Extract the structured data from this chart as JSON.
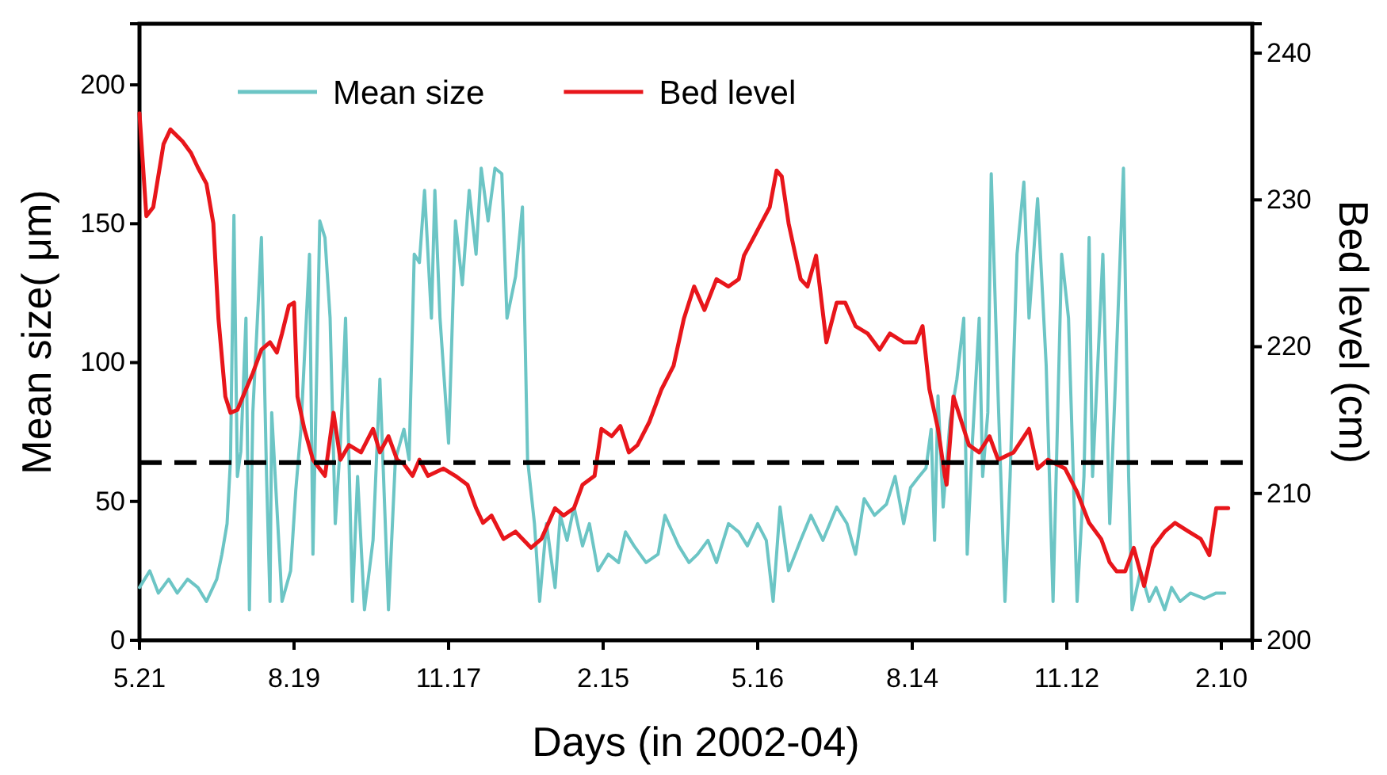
{
  "chart_data": {
    "type": "line",
    "xlabel": "Days (in 2002-04)",
    "ylabel": "Mean size( μm)",
    "y2label": "Bed level (cm)",
    "xlim": [
      "2002-05-21",
      "2004-02-28"
    ],
    "xticks": [
      {
        "value": "2002-05-21",
        "label": "5.21"
      },
      {
        "value": "2002-08-19",
        "label": "8.19"
      },
      {
        "value": "2002-11-17",
        "label": "11.17"
      },
      {
        "value": "2003-02-15",
        "label": "2.15"
      },
      {
        "value": "2003-05-16",
        "label": "5.16"
      },
      {
        "value": "2003-08-14",
        "label": "8.14"
      },
      {
        "value": "2003-11-12",
        "label": "11.12"
      },
      {
        "value": "2004-02-10",
        "label": "2.10"
      }
    ],
    "ylim": [
      0,
      222
    ],
    "yticks": [
      0,
      50,
      100,
      150,
      200
    ],
    "y2lim": [
      200,
      242
    ],
    "y2ticks": [
      200,
      210,
      220,
      230,
      240
    ],
    "grid": false,
    "legend": "top",
    "marker": "none",
    "ref_lines": [
      {
        "axis": "y",
        "value": 64,
        "color": "#000000",
        "line_style": "dashed"
      }
    ],
    "series": [
      {
        "name": "Mean size",
        "color": "#6cc5c5",
        "x": [
          "2002-05-21",
          "2002-05-27",
          "2002-06-01",
          "2002-06-07",
          "2002-06-12",
          "2002-06-18",
          "2002-06-24",
          "2002-06-29",
          "2002-07-05",
          "2002-07-08",
          "2002-07-11",
          "2002-07-13",
          "2002-07-15",
          "2002-07-17",
          "2002-07-19",
          "2002-07-22",
          "2002-07-24",
          "2002-07-26",
          "2002-07-31",
          "2002-08-03",
          "2002-08-05",
          "2002-08-06",
          "2002-08-12",
          "2002-08-17",
          "2002-08-20",
          "2002-08-23",
          "2002-08-28",
          "2002-08-30",
          "2002-09-03",
          "2002-09-06",
          "2002-09-09",
          "2002-09-12",
          "2002-09-15",
          "2002-09-18",
          "2002-09-22",
          "2002-09-25",
          "2002-09-29",
          "2002-10-04",
          "2002-10-08",
          "2002-10-13",
          "2002-10-17",
          "2002-10-22",
          "2002-10-25",
          "2002-10-28",
          "2002-10-31",
          "2002-11-03",
          "2002-11-07",
          "2002-11-09",
          "2002-11-12",
          "2002-11-17",
          "2002-11-21",
          "2002-11-25",
          "2002-11-29",
          "2002-12-03",
          "2002-12-06",
          "2002-12-10",
          "2002-12-14",
          "2002-12-18",
          "2002-12-21",
          "2002-12-26",
          "2002-12-30",
          "2003-01-02",
          "2003-01-06",
          "2003-01-09",
          "2003-01-13",
          "2003-01-18",
          "2003-01-21",
          "2003-01-25",
          "2003-01-29",
          "2003-02-03",
          "2003-02-07",
          "2003-02-12",
          "2003-02-18",
          "2003-02-24",
          "2003-02-28",
          "2003-03-05",
          "2003-03-12",
          "2003-03-19",
          "2003-03-23",
          "2003-03-31",
          "2003-04-06",
          "2003-04-11",
          "2003-04-17",
          "2003-04-22",
          "2003-04-29",
          "2003-05-05",
          "2003-05-10",
          "2003-05-16",
          "2003-05-21",
          "2003-05-25",
          "2003-05-29",
          "2003-06-03",
          "2003-06-10",
          "2003-06-16",
          "2003-06-23",
          "2003-07-01",
          "2003-07-07",
          "2003-07-12",
          "2003-07-17",
          "2003-07-23",
          "2003-07-30",
          "2003-08-04",
          "2003-08-09",
          "2003-08-13",
          "2003-08-18",
          "2003-08-22",
          "2003-08-25",
          "2003-08-27",
          "2003-08-29",
          "2003-09-01",
          "2003-09-05",
          "2003-09-09",
          "2003-09-13",
          "2003-09-15",
          "2003-09-18",
          "2003-09-22",
          "2003-09-24",
          "2003-09-27",
          "2003-09-29",
          "2003-10-03",
          "2003-10-07",
          "2003-10-10",
          "2003-10-14",
          "2003-10-18",
          "2003-10-21",
          "2003-10-26",
          "2003-10-31",
          "2003-11-04",
          "2003-11-09",
          "2003-11-13",
          "2003-11-18",
          "2003-11-22",
          "2003-11-25",
          "2003-11-27",
          "2003-11-30",
          "2003-12-03",
          "2003-12-07",
          "2003-12-10",
          "2003-12-15",
          "2003-12-18",
          "2003-12-20",
          "2003-12-25",
          "2003-12-30",
          "2004-01-03",
          "2004-01-08",
          "2004-01-12",
          "2004-01-17",
          "2004-01-23",
          "2004-01-31",
          "2004-02-07",
          "2004-02-12"
        ],
        "values": [
          19,
          25,
          17,
          22,
          17,
          22,
          19,
          14,
          22,
          31,
          42,
          65,
          153,
          59,
          68,
          116,
          11,
          82,
          145,
          59,
          14,
          82,
          14,
          25,
          54,
          76,
          139,
          31,
          151,
          145,
          116,
          42,
          71,
          116,
          14,
          59,
          11,
          36,
          94,
          11,
          65,
          76,
          65,
          139,
          136,
          162,
          116,
          162,
          116,
          71,
          151,
          128,
          162,
          139,
          170,
          151,
          170,
          168,
          116,
          131,
          156,
          65,
          42,
          14,
          42,
          19,
          45,
          36,
          48,
          34,
          42,
          25,
          31,
          28,
          39,
          34,
          28,
          31,
          45,
          34,
          28,
          31,
          36,
          28,
          42,
          39,
          34,
          42,
          36,
          14,
          48,
          25,
          36,
          45,
          36,
          48,
          42,
          31,
          51,
          45,
          49,
          59,
          42,
          55,
          59,
          62,
          76,
          36,
          88,
          48,
          79,
          94,
          116,
          31,
          71,
          116,
          59,
          82,
          168,
          88,
          14,
          59,
          139,
          165,
          116,
          159,
          99,
          14,
          139,
          116,
          14,
          59,
          145,
          59,
          99,
          139,
          42,
          88,
          170,
          59,
          11,
          25,
          14,
          19,
          11,
          19,
          14,
          17,
          15,
          17,
          17
        ]
      },
      {
        "name": "Bed level",
        "color": "#e8161b",
        "axis": "y2",
        "x": [
          "2002-05-21",
          "2002-05-25",
          "2002-05-29",
          "2002-06-04",
          "2002-06-08",
          "2002-06-15",
          "2002-06-20",
          "2002-06-24",
          "2002-06-29",
          "2002-07-03",
          "2002-07-06",
          "2002-07-10",
          "2002-07-13",
          "2002-07-17",
          "2002-07-22",
          "2002-07-26",
          "2002-07-31",
          "2002-08-05",
          "2002-08-09",
          "2002-08-12",
          "2002-08-16",
          "2002-08-19",
          "2002-08-21",
          "2002-08-25",
          "2002-08-30",
          "2002-09-06",
          "2002-09-11",
          "2002-09-15",
          "2002-09-20",
          "2002-09-27",
          "2002-10-04",
          "2002-10-08",
          "2002-10-13",
          "2002-10-18",
          "2002-10-22",
          "2002-10-27",
          "2002-10-31",
          "2002-11-05",
          "2002-11-14",
          "2002-11-21",
          "2002-11-28",
          "2002-12-03",
          "2002-12-07",
          "2002-12-12",
          "2002-12-19",
          "2002-12-26",
          "2003-01-04",
          "2003-01-10",
          "2003-01-18",
          "2003-01-23",
          "2003-01-29",
          "2003-02-03",
          "2003-02-10",
          "2003-02-14",
          "2003-02-20",
          "2003-02-25",
          "2003-03-02",
          "2003-03-07",
          "2003-03-14",
          "2003-03-21",
          "2003-03-28",
          "2003-04-03",
          "2003-04-09",
          "2003-04-15",
          "2003-04-22",
          "2003-04-29",
          "2003-05-05",
          "2003-05-08",
          "2003-05-13",
          "2003-05-18",
          "2003-05-23",
          "2003-05-27",
          "2003-05-30",
          "2003-06-03",
          "2003-06-10",
          "2003-06-14",
          "2003-06-19",
          "2003-06-25",
          "2003-07-01",
          "2003-07-06",
          "2003-07-12",
          "2003-07-19",
          "2003-07-26",
          "2003-08-01",
          "2003-08-09",
          "2003-08-16",
          "2003-08-20",
          "2003-08-24",
          "2003-08-29",
          "2003-09-02",
          "2003-09-03",
          "2003-09-07",
          "2003-09-13",
          "2003-09-16",
          "2003-09-22",
          "2003-09-28",
          "2003-10-03",
          "2003-10-12",
          "2003-10-21",
          "2003-10-26",
          "2003-11-01",
          "2003-11-11",
          "2003-11-18",
          "2003-11-25",
          "2003-12-02",
          "2003-12-07",
          "2003-12-11",
          "2003-12-16",
          "2003-12-21",
          "2003-12-27",
          "2004-01-01",
          "2004-01-08",
          "2004-01-14",
          "2004-01-22",
          "2004-01-29",
          "2004-02-03",
          "2004-02-07",
          "2004-02-14"
        ],
        "values": [
          235.9,
          228.9,
          229.5,
          233.8,
          234.8,
          234.0,
          233.2,
          232.2,
          231.1,
          228.4,
          221.9,
          216.6,
          215.5,
          215.7,
          217.1,
          218.2,
          219.8,
          220.3,
          219.6,
          220.9,
          222.8,
          223.0,
          216.6,
          214.4,
          212.3,
          211.2,
          215.5,
          212.3,
          213.3,
          212.8,
          214.4,
          212.8,
          213.9,
          212.3,
          212.0,
          211.2,
          212.3,
          211.2,
          211.7,
          211.2,
          210.6,
          209.0,
          208.0,
          208.5,
          206.9,
          207.4,
          206.3,
          206.9,
          209.0,
          208.5,
          209.0,
          210.6,
          211.2,
          214.4,
          213.9,
          214.6,
          212.8,
          213.3,
          214.9,
          217.1,
          218.7,
          221.9,
          224.1,
          222.5,
          224.6,
          224.1,
          224.6,
          226.2,
          227.3,
          228.4,
          229.5,
          232.0,
          231.6,
          228.4,
          224.6,
          224.1,
          226.2,
          220.3,
          223.0,
          223.0,
          221.4,
          220.9,
          219.8,
          220.9,
          220.3,
          220.3,
          221.4,
          217.1,
          214.4,
          211.2,
          210.6,
          216.6,
          214.4,
          213.3,
          212.8,
          213.9,
          212.3,
          212.8,
          214.4,
          211.7,
          212.3,
          211.7,
          210.1,
          208.0,
          206.9,
          205.3,
          204.7,
          204.7,
          206.3,
          203.7,
          206.3,
          207.4,
          208.0,
          207.4,
          206.9,
          205.8,
          209.0,
          209.0
        ]
      }
    ]
  }
}
